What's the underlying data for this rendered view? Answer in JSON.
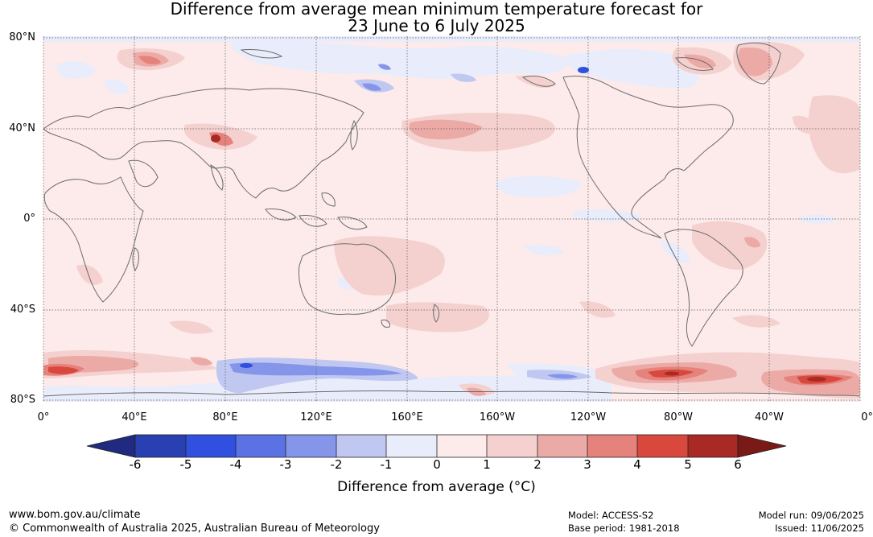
{
  "title": {
    "line1": "Difference from average mean minimum temperature forecast for",
    "line2": "23 June to 6 July 2025"
  },
  "map": {
    "lat_labels": [
      "80°N",
      "40°N",
      "0°",
      "40°S",
      "80°S"
    ],
    "lon_labels": [
      "0°",
      "40°E",
      "80°E",
      "120°E",
      "160°E",
      "160°W",
      "120°W",
      "80°W",
      "40°W",
      "0°"
    ],
    "ocean_color": "#fcebea",
    "land_outline_color": "#6b6b6b"
  },
  "colorbar": {
    "title": "Difference from average (°C)",
    "ticks": [
      "-6",
      "-5",
      "-4",
      "-3",
      "-2",
      "-1",
      "0",
      "1",
      "2",
      "3",
      "4",
      "5",
      "6"
    ],
    "colors": [
      "#1f2a80",
      "#2940b3",
      "#3150e0",
      "#5a72e4",
      "#8596ea",
      "#c0c8f2",
      "#e9ecfb",
      "#fcebea",
      "#f4d1cf",
      "#ecaaa6",
      "#e6827c",
      "#d9483c",
      "#a92924",
      "#7a1a17"
    ]
  },
  "footer": {
    "url": "www.bom.gov.au/climate",
    "copyright": "© Commonwealth of Australia 2025, Australian Bureau of Meteorology",
    "model": "Model: ACCESS-S2",
    "base_period": "Base period: 1981-2018",
    "model_run": "Model run: 09/06/2025",
    "issued": "Issued: 11/06/2025"
  }
}
